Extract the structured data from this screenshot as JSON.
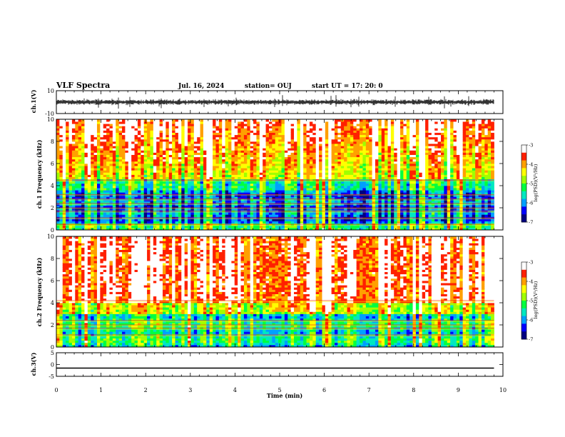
{
  "header": {
    "title": "VLF Spectra",
    "date": "Jul. 16, 2024",
    "station": "station= OUJ",
    "start": "start  UT =  17: 20: 0"
  },
  "colors": {
    "spectrum": [
      "#000080",
      "#0000ff",
      "#00a0ff",
      "#00e8c0",
      "#00ff40",
      "#a0ff00",
      "#ffff00",
      "#ffa000",
      "#ff2000",
      "#ffffff"
    ]
  },
  "chart_data": [
    {
      "type": "line",
      "panel": "waveform-ch1",
      "ylabel": "ch.1(V)",
      "ylim": [
        -10,
        10
      ],
      "yticks": [
        "10",
        "-10"
      ],
      "xlim": [
        0,
        10
      ],
      "series": [
        {
          "values_note_level": 0
        }
      ]
    },
    {
      "type": "heatmap",
      "panel": "spectrogram-ch1",
      "ylabel": "ch.1 Frequency (kHz)",
      "ylim": [
        0,
        10
      ],
      "yticks": [
        "0",
        "2",
        "4",
        "6",
        "8",
        "10"
      ],
      "xlim": [
        0,
        9.8
      ],
      "colorbar": {
        "label": "log(PSD)(V²/Hz)",
        "ticks": [
          "-3",
          "-4",
          "-5",
          "-6",
          "-7"
        ],
        "range": [
          -7,
          -3
        ]
      },
      "bands_khz": [
        0.5,
        1.1,
        1.7,
        2.0,
        2.4,
        2.8,
        3.2,
        4.5
      ]
    },
    {
      "type": "heatmap",
      "panel": "spectrogram-ch2",
      "ylabel": "ch.2 Frequency (kHz)",
      "ylim": [
        0,
        10
      ],
      "yticks": [
        "0",
        "2",
        "4",
        "6",
        "8",
        "10"
      ],
      "xlim": [
        0,
        9.8
      ],
      "colorbar": {
        "label": "log(PSD)(V²/Hz)",
        "ticks": [
          "-3",
          "-4",
          "-5",
          "-6",
          "-7"
        ],
        "range": [
          -7,
          -3
        ]
      },
      "bands_khz": [
        1.1,
        1.7,
        2.0,
        2.4,
        4.2
      ]
    },
    {
      "type": "line",
      "panel": "waveform-ch3",
      "ylabel": "ch.3(V)",
      "ylim": [
        -5,
        5
      ],
      "yticks": [
        "5",
        "0",
        "-5"
      ],
      "xlim": [
        0,
        10
      ],
      "series": [
        {
          "constant_value": -1.5
        }
      ]
    }
  ],
  "xaxis": {
    "label": "Time  (min)",
    "ticks": [
      "0",
      "1",
      "2",
      "3",
      "4",
      "5",
      "6",
      "7",
      "8",
      "9",
      "10"
    ]
  }
}
